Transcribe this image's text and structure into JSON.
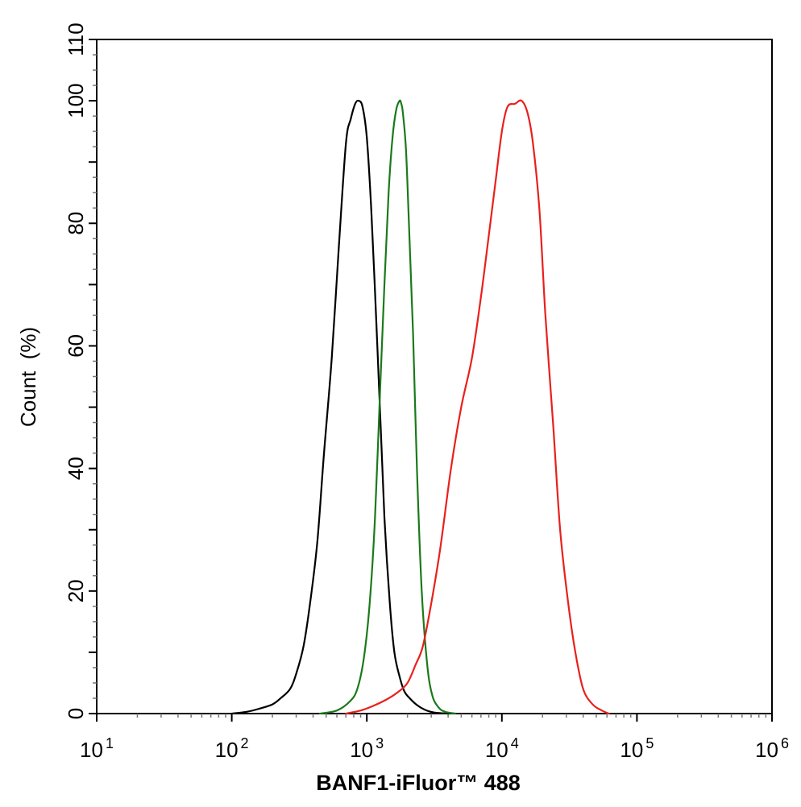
{
  "chart_data": {
    "type": "line",
    "title": "",
    "xlabel": "BANF1-iFluor™ 488",
    "ylabel": "Count  (%)",
    "x_scale": "log",
    "xlim": [
      10,
      1000000
    ],
    "ylim": [
      0,
      110
    ],
    "y_ticks": [
      0,
      20,
      40,
      60,
      80,
      100
    ],
    "y_tick_labels": [
      "0",
      "20",
      "40",
      "60",
      "80",
      "100"
    ],
    "y_top_label": "110",
    "x_tick_labels": [
      {
        "base": "10",
        "exp": "1"
      },
      {
        "base": "10",
        "exp": "2"
      },
      {
        "base": "10",
        "exp": "3"
      },
      {
        "base": "10",
        "exp": "4"
      },
      {
        "base": "10",
        "exp": "5"
      },
      {
        "base": "10",
        "exp": "6"
      }
    ],
    "grid": false,
    "legend": "none",
    "series": [
      {
        "color": "#000000",
        "x": [
          100,
          130,
          160,
          200,
          230,
          270,
          300,
          340,
          380,
          430,
          480,
          550,
          620,
          700,
          760,
          820,
          870,
          930,
          1000,
          1080,
          1170,
          1260,
          1350,
          1480,
          1600,
          1750,
          1900,
          2100,
          2350,
          2700,
          3100,
          3600,
          4500
        ],
        "y": [
          0,
          0.3,
          0.8,
          1.5,
          2.5,
          4,
          6.5,
          11,
          18,
          28,
          42,
          58,
          76,
          93,
          97,
          99.5,
          100,
          99,
          94,
          82,
          65,
          48,
          32,
          18,
          10,
          6,
          3.6,
          2.4,
          1.4,
          0.6,
          0.2,
          0.05,
          0
        ]
      },
      {
        "color": "#1a7a1a",
        "x": [
          450,
          600,
          750,
          850,
          950,
          1050,
          1150,
          1250,
          1350,
          1450,
          1550,
          1650,
          1750,
          1800,
          1850,
          1950,
          2050,
          2200,
          2350,
          2550,
          2800,
          3050,
          3400,
          3800,
          4500
        ],
        "y": [
          0,
          0.5,
          2,
          4,
          9,
          18,
          32,
          52,
          70,
          85,
          94,
          98.5,
          100,
          99.5,
          98,
          92,
          80,
          62,
          40,
          20,
          8,
          3,
          1,
          0.3,
          0
        ]
      },
      {
        "color": "#e8201c",
        "x": [
          700,
          900,
          1100,
          1400,
          1700,
          2000,
          2300,
          2600,
          3000,
          3500,
          4200,
          5000,
          6000,
          7000,
          8000,
          9000,
          10000,
          11000,
          12500,
          14000,
          15500,
          17000,
          19000,
          21000,
          24000,
          27000,
          31000,
          35000,
          40000,
          47000,
          55000,
          62000
        ],
        "y": [
          0,
          0.5,
          1.2,
          2.3,
          3.5,
          5,
          8,
          11,
          18,
          27,
          40,
          50,
          58,
          68,
          78,
          87,
          95,
          99,
          99.5,
          100,
          98,
          93,
          82,
          65,
          47,
          30,
          18,
          10,
          4,
          1.5,
          0.5,
          0
        ]
      }
    ]
  }
}
